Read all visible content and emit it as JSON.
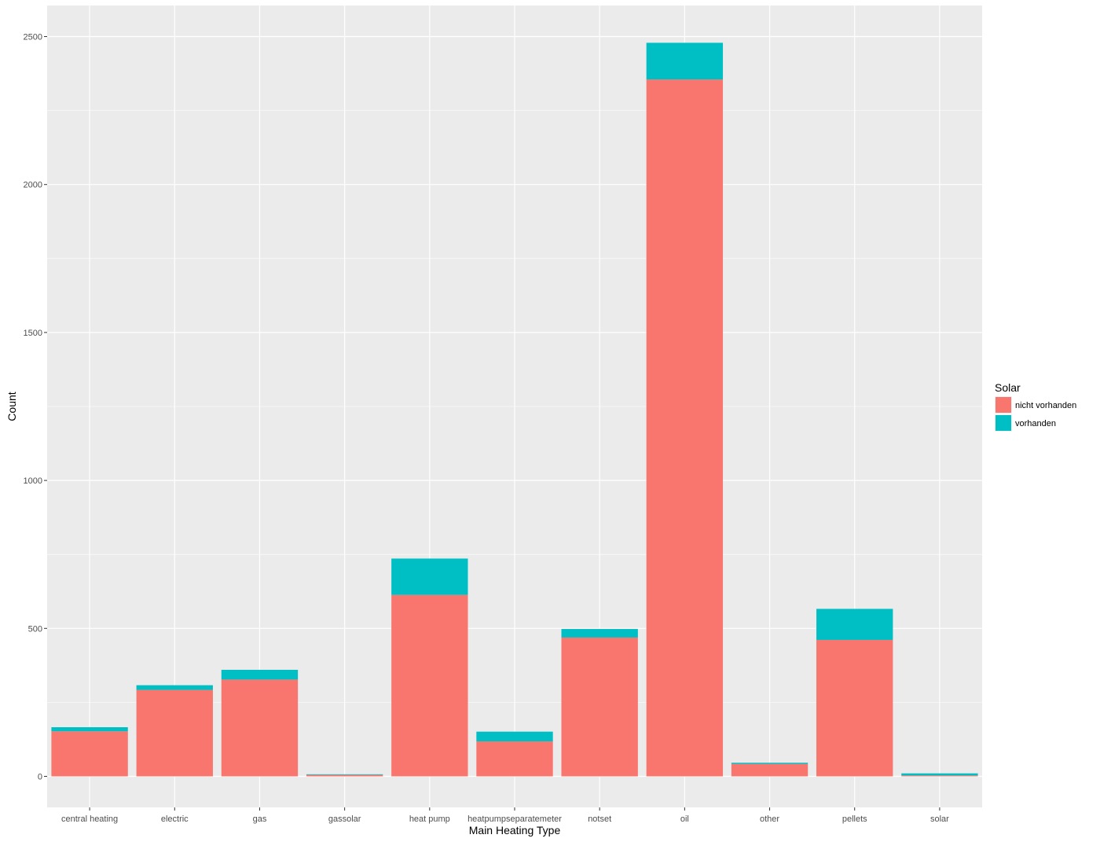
{
  "chart_data": {
    "type": "bar",
    "stacked": true,
    "xlabel": "Main Heating Type",
    "ylabel": "Count",
    "ylim": [
      -105,
      2605
    ],
    "yticks": [
      0,
      500,
      1000,
      1500,
      2000,
      2500
    ],
    "grid": true,
    "categories": [
      "central heating",
      "electric",
      "gas",
      "gassolar",
      "heat pump",
      "heatpumpseparatemeter",
      "notset",
      "oil",
      "other",
      "pellets",
      "solar"
    ],
    "series": [
      {
        "name": "nicht vorhanden",
        "color": "#F8766D",
        "values": [
          152,
          292,
          327,
          5,
          613,
          118,
          469,
          2355,
          42,
          461,
          3
        ]
      },
      {
        "name": "vorhanden",
        "color": "#00BFC4",
        "values": [
          14,
          16,
          33,
          2,
          123,
          33,
          29,
          124,
          4,
          105,
          7
        ]
      }
    ],
    "legend": {
      "title": "Solar",
      "position": "right"
    }
  }
}
